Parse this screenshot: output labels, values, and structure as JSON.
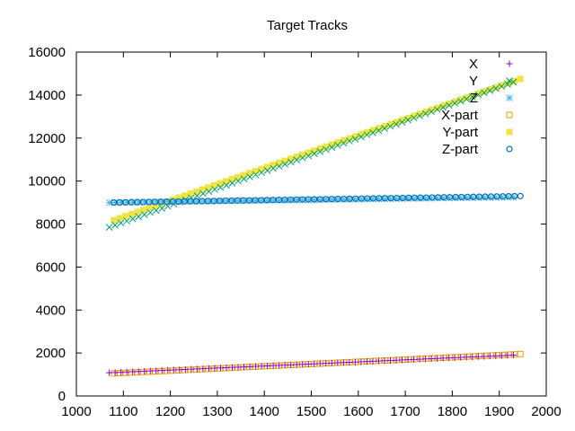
{
  "chart_data": {
    "type": "scatter",
    "title": "Target Tracks",
    "xlabel": "",
    "ylabel": "",
    "xlim": [
      1000,
      2000
    ],
    "ylim": [
      0,
      16000
    ],
    "x_ticks": [
      1000,
      1100,
      1200,
      1300,
      1400,
      1500,
      1600,
      1700,
      1800,
      1900,
      2000
    ],
    "y_ticks": [
      0,
      2000,
      4000,
      6000,
      8000,
      10000,
      12000,
      14000,
      16000
    ],
    "grid": false,
    "legend_position": "top-right",
    "series": [
      {
        "name": "X",
        "marker": "plus",
        "color": "#9400d3",
        "x_range": [
          1070,
          1930
        ],
        "y_range": [
          1080,
          1900
        ],
        "count": 70
      },
      {
        "name": "Y",
        "marker": "cross",
        "color": "#009e73",
        "x_range": [
          1070,
          1930
        ],
        "y_range": [
          7850,
          14600
        ],
        "count": 70
      },
      {
        "name": "Z",
        "marker": "asterisk",
        "color": "#56b4e9",
        "x_range": [
          1070,
          1930
        ],
        "y_range": [
          9000,
          9250
        ],
        "count": 70
      },
      {
        "name": "X-part",
        "marker": "open-square",
        "color": "#e69f00",
        "x_range": [
          1080,
          1945
        ],
        "y_range": [
          1050,
          1950
        ],
        "count": 70
      },
      {
        "name": "Y-part",
        "marker": "filled-square",
        "color": "#f0e442",
        "x_range": [
          1080,
          1945
        ],
        "y_range": [
          8180,
          14750
        ],
        "count": 70
      },
      {
        "name": "Z-part",
        "marker": "open-circle",
        "color": "#0072b2",
        "x_range": [
          1080,
          1945
        ],
        "y_range": [
          9000,
          9300
        ],
        "count": 70
      }
    ]
  }
}
